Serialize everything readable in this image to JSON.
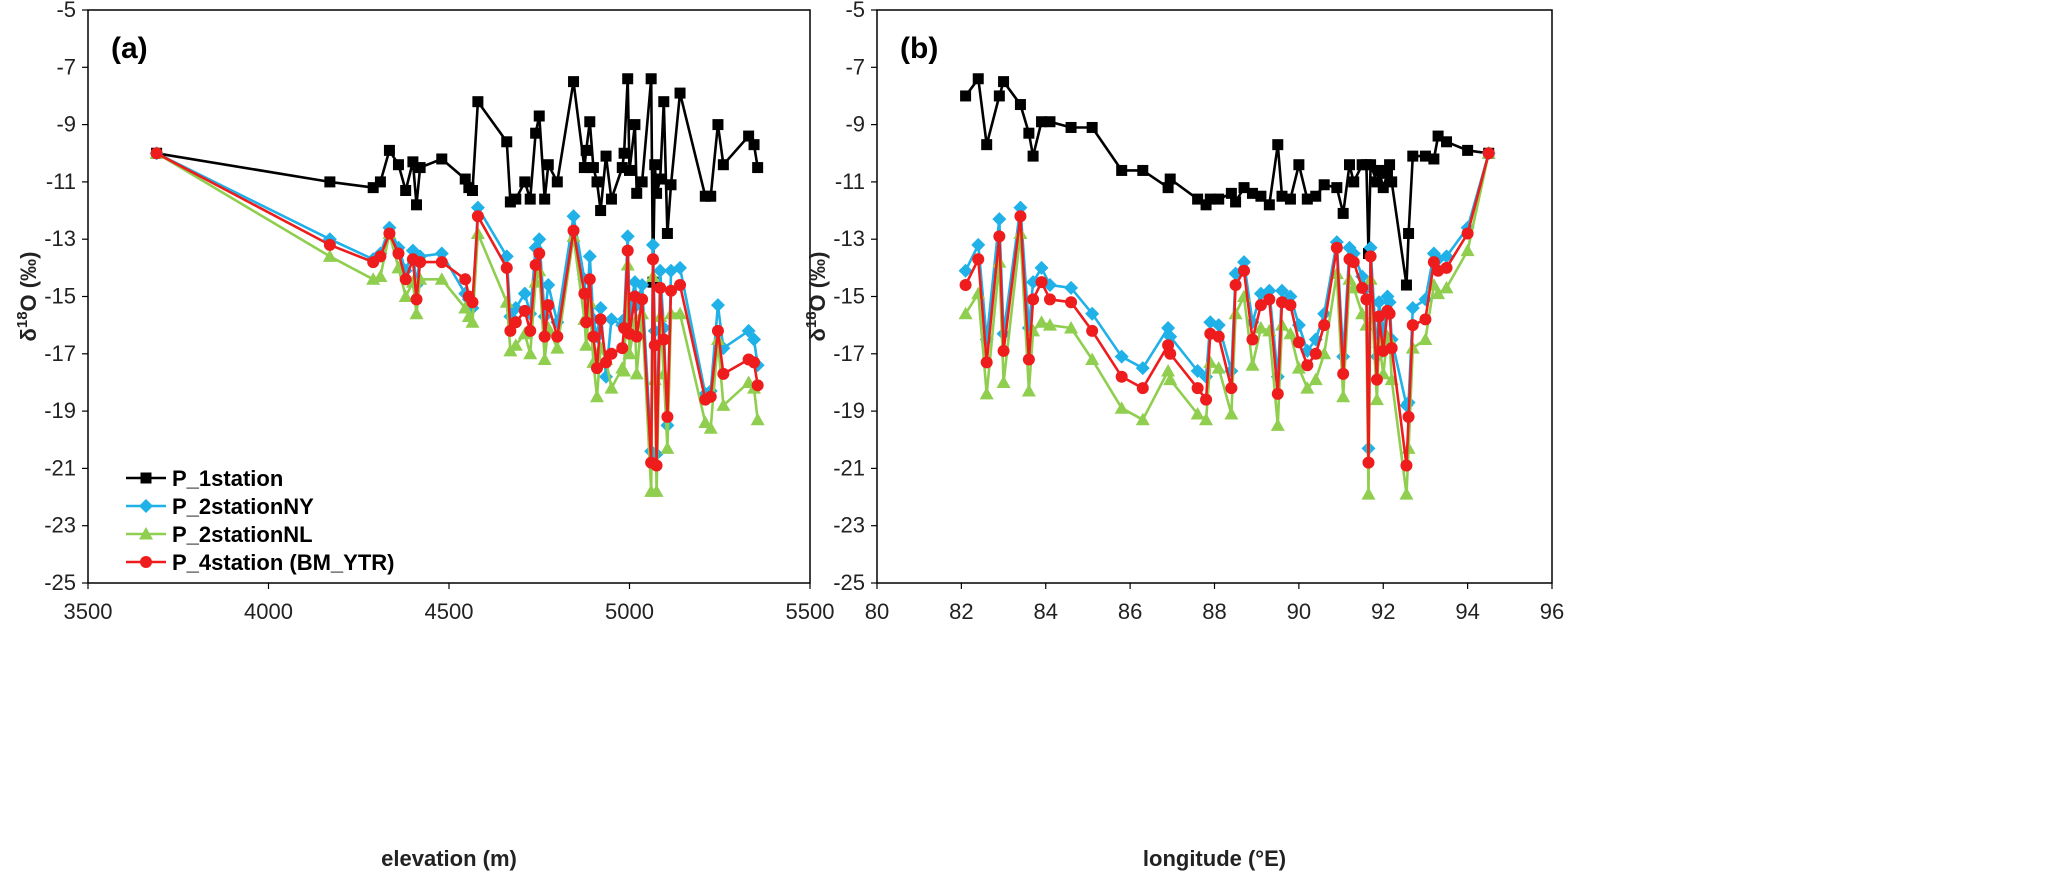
{
  "colors": {
    "P_1station": "#000000",
    "P_2stationNY": "#1fb1e8",
    "P_2stationNL": "#8fce4e",
    "P_4station": "#ee1c1c"
  },
  "legend": [
    "P_1station",
    "P_2stationNY",
    "P_2stationNL",
    "P_4station (BM_YTR)"
  ],
  "chart_data": [
    {
      "type": "line",
      "panel_label": "(a)",
      "xlabel": "elevation (m)",
      "ylabel": "δ18O (‰)",
      "xlim": [
        3500,
        5500
      ],
      "ylim": [
        -25,
        -5
      ],
      "xticks": [
        "3500",
        "4000",
        "4500",
        "5000",
        "5500"
      ],
      "yticks": [
        "-5",
        "-7",
        "-9",
        "-11",
        "-13",
        "-15",
        "-17",
        "-19",
        "-21",
        "-23",
        "-25"
      ],
      "legend_position": "bottom-left",
      "x": [
        3690,
        4170,
        4290,
        4310,
        4335,
        4360,
        4380,
        4400,
        4410,
        4420,
        4480,
        4545,
        4555,
        4565,
        4580,
        4660,
        4670,
        4685,
        4710,
        4725,
        4740,
        4750,
        4765,
        4775,
        4800,
        4845,
        4875,
        4880,
        4890,
        4900,
        4910,
        4920,
        4935,
        4950,
        4980,
        4985,
        4995,
        5000,
        5015,
        5020,
        5035,
        5060,
        5065,
        5070,
        5075,
        5085,
        5095,
        5105,
        5115,
        5140,
        5210,
        5225,
        5245,
        5260,
        5330,
        5345,
        5355
      ],
      "series": [
        {
          "name": "P_1station",
          "values": [
            -10.0,
            -11.0,
            -11.2,
            -11.0,
            -9.9,
            -10.4,
            -11.3,
            -10.3,
            -11.8,
            -10.5,
            -10.2,
            -10.9,
            -11.2,
            -11.3,
            -8.2,
            -9.6,
            -11.7,
            -11.6,
            -11.0,
            -11.6,
            -9.3,
            -8.7,
            -11.6,
            -10.4,
            -11.0,
            -7.5,
            -10.5,
            -9.9,
            -8.9,
            -10.5,
            -11.0,
            -12.0,
            -10.1,
            -11.6,
            -10.5,
            -10.0,
            -7.4,
            -10.6,
            -9.0,
            -11.4,
            -11.0,
            -7.4,
            -14.5,
            -10.4,
            -11.4,
            -10.9,
            -8.2,
            -12.8,
            -11.1,
            -7.9,
            -11.5,
            -11.5,
            -9.0,
            -10.4,
            -9.4,
            -9.7,
            -10.5
          ]
        },
        {
          "name": "P_2stationNY",
          "values": [
            -10.0,
            -13.0,
            -13.7,
            -13.5,
            -12.6,
            -13.3,
            -14.1,
            -13.4,
            -14.6,
            -13.6,
            -13.5,
            -14.9,
            -15.1,
            -15.4,
            -11.9,
            -13.6,
            -15.7,
            -15.4,
            -14.9,
            -15.6,
            -13.3,
            -13.0,
            -15.7,
            -14.6,
            -15.9,
            -12.2,
            -14.4,
            -15.9,
            -13.6,
            -15.8,
            -16.4,
            -15.4,
            -17.8,
            -15.8,
            -16.0,
            -15.8,
            -12.9,
            -15.5,
            -14.5,
            -15.3,
            -14.6,
            -20.4,
            -13.2,
            -16.2,
            -20.5,
            -14.1,
            -16.1,
            -19.5,
            -14.1,
            -14.0,
            -18.4,
            -18.3,
            -15.3,
            -16.8,
            -16.2,
            -16.5,
            -17.4
          ]
        },
        {
          "name": "P_2stationNL",
          "values": [
            -10.0,
            -13.6,
            -14.4,
            -14.3,
            -12.8,
            -14.0,
            -15.0,
            -14.5,
            -15.6,
            -14.4,
            -14.4,
            -15.4,
            -15.7,
            -15.9,
            -12.8,
            -15.2,
            -16.9,
            -16.7,
            -16.3,
            -17.0,
            -14.5,
            -14.1,
            -17.2,
            -16.1,
            -16.8,
            -12.9,
            -15.8,
            -16.7,
            -15.2,
            -17.3,
            -18.5,
            -16.8,
            -17.2,
            -18.2,
            -17.5,
            -17.6,
            -13.9,
            -17.0,
            -15.9,
            -17.7,
            -15.6,
            -21.8,
            -14.3,
            -17.9,
            -21.8,
            -15.7,
            -17.7,
            -20.3,
            -15.6,
            -15.6,
            -19.4,
            -19.6,
            -16.5,
            -18.8,
            -18.0,
            -18.2,
            -19.3
          ]
        },
        {
          "name": "P_4station (BM_YTR)",
          "values": [
            -10.0,
            -13.2,
            -13.8,
            -13.6,
            -12.8,
            -13.5,
            -14.4,
            -13.7,
            -15.1,
            -13.8,
            -13.8,
            -14.4,
            -15.0,
            -15.2,
            -12.2,
            -14.0,
            -16.2,
            -15.9,
            -15.5,
            -16.2,
            -13.9,
            -13.5,
            -16.4,
            -15.3,
            -16.4,
            -12.7,
            -14.9,
            -15.9,
            -14.4,
            -16.4,
            -17.5,
            -15.8,
            -17.3,
            -17.0,
            -16.8,
            -16.1,
            -13.4,
            -16.3,
            -15.0,
            -16.4,
            -15.1,
            -20.8,
            -13.7,
            -16.7,
            -20.9,
            -14.7,
            -16.5,
            -19.2,
            -14.8,
            -14.6,
            -18.6,
            -18.5,
            -16.2,
            -17.7,
            -17.2,
            -17.3,
            -18.1
          ]
        }
      ]
    },
    {
      "type": "line",
      "panel_label": "(b)",
      "xlabel": "longitude (°E)",
      "ylabel": "δ18O (‰)",
      "xlim": [
        80,
        96
      ],
      "ylim": [
        -25,
        -5
      ],
      "xticks": [
        "80",
        "82",
        "84",
        "86",
        "88",
        "90",
        "92",
        "94",
        "96"
      ],
      "yticks": [
        "-5",
        "-7",
        "-9",
        "-11",
        "-13",
        "-15",
        "-17",
        "-19",
        "-21",
        "-23",
        "-25"
      ],
      "x": [
        82.1,
        82.4,
        82.6,
        82.9,
        83.0,
        83.4,
        83.6,
        83.7,
        83.9,
        84.1,
        84.6,
        85.1,
        85.8,
        86.3,
        86.9,
        86.95,
        87.6,
        87.8,
        87.9,
        88.1,
        88.4,
        88.5,
        88.7,
        88.9,
        89.1,
        89.3,
        89.5,
        89.6,
        89.8,
        90.0,
        90.2,
        90.4,
        90.6,
        90.9,
        91.05,
        91.2,
        91.3,
        91.5,
        91.6,
        91.65,
        91.7,
        91.85,
        91.9,
        92.0,
        92.1,
        92.15,
        92.2,
        92.55,
        92.6,
        92.7,
        93.0,
        93.2,
        93.3,
        93.5,
        94.0,
        94.5
      ],
      "series": [
        {
          "name": "P_1station",
          "values": [
            -8.0,
            -7.4,
            -9.7,
            -8.0,
            -7.5,
            -8.3,
            -9.3,
            -10.1,
            -8.9,
            -8.9,
            -9.1,
            -9.1,
            -10.6,
            -10.6,
            -11.2,
            -10.9,
            -11.6,
            -11.8,
            -11.6,
            -11.6,
            -11.4,
            -11.7,
            -11.2,
            -11.4,
            -11.5,
            -11.8,
            -9.7,
            -11.5,
            -11.6,
            -10.4,
            -11.6,
            -11.5,
            -11.1,
            -11.2,
            -12.1,
            -10.4,
            -11.0,
            -10.4,
            -10.4,
            -13.5,
            -10.4,
            -11.0,
            -10.6,
            -11.2,
            -10.7,
            -10.4,
            -11.0,
            -14.6,
            -12.8,
            -10.1,
            -10.1,
            -10.2,
            -9.4,
            -9.6,
            -9.9,
            -10.0
          ]
        },
        {
          "name": "P_2stationNY",
          "values": [
            -14.1,
            -13.2,
            -16.5,
            -12.3,
            -16.3,
            -11.9,
            -16.1,
            -14.5,
            -14.0,
            -14.6,
            -14.7,
            -15.6,
            -17.1,
            -17.5,
            -16.1,
            -16.4,
            -17.6,
            -17.8,
            -15.9,
            -16.0,
            -17.6,
            -14.2,
            -13.8,
            -15.9,
            -14.9,
            -14.8,
            -17.8,
            -14.8,
            -15.0,
            -16.0,
            -16.9,
            -16.5,
            -15.6,
            -13.1,
            -17.1,
            -13.3,
            -13.5,
            -14.3,
            -14.7,
            -20.3,
            -13.3,
            -17.1,
            -15.2,
            -16.3,
            -15.0,
            -15.2,
            -16.5,
            -18.8,
            -18.7,
            -15.4,
            -15.1,
            -13.5,
            -13.7,
            -13.6,
            -12.6,
            -10.0
          ]
        },
        {
          "name": "P_2stationNL",
          "values": [
            -15.6,
            -14.9,
            -18.4,
            -13.8,
            -18.0,
            -12.8,
            -18.3,
            -16.2,
            -15.9,
            -16.0,
            -16.1,
            -17.2,
            -18.9,
            -19.3,
            -17.6,
            -17.9,
            -19.1,
            -19.3,
            -17.3,
            -17.5,
            -19.1,
            -15.6,
            -15.0,
            -17.4,
            -16.1,
            -16.2,
            -19.5,
            -16.0,
            -16.3,
            -17.5,
            -18.2,
            -17.9,
            -17.0,
            -14.2,
            -18.5,
            -14.4,
            -14.7,
            -15.6,
            -16.0,
            -21.9,
            -14.4,
            -18.6,
            -16.6,
            -17.7,
            -16.4,
            -16.5,
            -17.9,
            -21.9,
            -20.3,
            -16.8,
            -16.5,
            -14.6,
            -14.9,
            -14.7,
            -13.4,
            -10.0
          ]
        },
        {
          "name": "P_4station (BM_YTR)",
          "values": [
            -14.6,
            -13.7,
            -17.3,
            -12.9,
            -16.9,
            -12.2,
            -17.2,
            -15.1,
            -14.5,
            -15.1,
            -15.2,
            -16.2,
            -17.8,
            -18.2,
            -16.7,
            -17.0,
            -18.2,
            -18.6,
            -16.3,
            -16.4,
            -18.2,
            -14.6,
            -14.1,
            -16.5,
            -15.3,
            -15.1,
            -18.4,
            -15.2,
            -15.3,
            -16.6,
            -17.4,
            -17.0,
            -16.0,
            -13.3,
            -17.7,
            -13.7,
            -13.8,
            -14.7,
            -15.1,
            -20.8,
            -13.6,
            -17.9,
            -15.7,
            -16.9,
            -15.5,
            -15.6,
            -16.8,
            -20.9,
            -19.2,
            -16.0,
            -15.8,
            -13.8,
            -14.1,
            -14.0,
            -12.8,
            -10.0
          ]
        }
      ]
    }
  ]
}
